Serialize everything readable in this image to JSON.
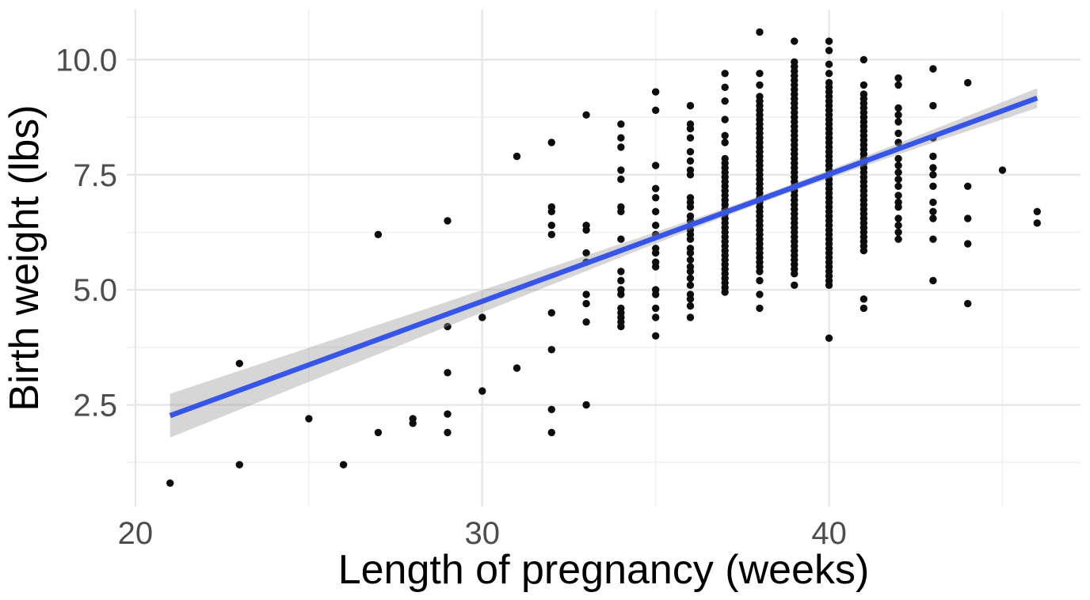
{
  "page": {
    "background": "#FFFFFF"
  },
  "chart_data": {
    "type": "scatter",
    "title": "",
    "xlabel": "Length of pregnancy (weeks)",
    "ylabel": "Birth weight (lbs)",
    "xlim": [
      19.75,
      47.25
    ],
    "ylim": [
      0.29,
      11.09
    ],
    "x_major_ticks": [
      {
        "value": 20,
        "label": "20"
      },
      {
        "value": 30,
        "label": "30"
      },
      {
        "value": 40,
        "label": "40"
      }
    ],
    "x_minor_ticks": [
      25,
      35,
      45
    ],
    "y_major_ticks": [
      {
        "value": 2.5,
        "label": "2.5"
      },
      {
        "value": 5.0,
        "label": "5.0"
      },
      {
        "value": 7.5,
        "label": "7.5"
      },
      {
        "value": 10.0,
        "label": "10.0"
      }
    ],
    "y_minor_ticks": [
      1.25,
      3.75,
      6.25,
      8.75
    ],
    "grid": "major+minor horizontal and vertical, theme_minimal (no axis lines, no tick marks)",
    "legend": "none",
    "points_by_week": [
      {
        "week": 21,
        "weights": [
          0.8
        ]
      },
      {
        "week": 23,
        "weights": [
          3.4,
          1.2
        ]
      },
      {
        "week": 25,
        "weights": [
          2.2
        ]
      },
      {
        "week": 26,
        "weights": [
          1.2
        ]
      },
      {
        "week": 27,
        "weights": [
          6.2,
          1.9
        ]
      },
      {
        "week": 28,
        "weights": [
          2.2,
          2.1
        ]
      },
      {
        "week": 29,
        "weights": [
          6.5,
          4.2,
          3.2,
          2.3,
          1.9
        ]
      },
      {
        "week": 30,
        "weights": [
          4.4,
          2.8
        ]
      },
      {
        "week": 31,
        "weights": [
          7.9,
          3.3
        ]
      },
      {
        "week": 32,
        "weights": [
          8.2,
          6.8,
          6.7,
          6.4,
          6.2,
          4.5,
          3.7,
          2.4,
          1.9
        ]
      },
      {
        "week": 33,
        "weights": [
          8.8,
          6.4,
          6.3,
          5.8,
          5.6,
          4.9,
          4.7,
          4.3,
          2.5
        ]
      },
      {
        "week": 34,
        "weights": [
          8.6,
          8.3,
          8.1,
          7.6,
          7.4,
          6.8,
          6.7,
          6.1,
          5.4,
          5.2,
          5.0,
          4.9,
          4.6,
          4.5,
          4.4,
          4.3,
          4.2
        ]
      },
      {
        "week": 35,
        "weights": [
          9.3,
          8.9,
          7.7,
          7.2,
          7.0,
          6.7,
          6.4,
          6.2,
          5.9,
          5.8,
          5.6,
          5.5,
          5.0,
          4.9,
          4.6,
          4.4,
          4.0
        ]
      },
      {
        "week": 36,
        "weights": [
          9.0,
          8.6,
          8.5,
          8.3,
          8.0,
          7.8,
          7.6,
          7.5,
          7.0,
          6.9,
          6.8,
          6.6,
          6.5,
          6.3,
          6.2,
          6.1,
          5.9,
          5.8,
          5.65,
          5.5,
          5.4,
          5.25,
          5.1,
          4.9,
          4.8,
          4.65,
          4.4
        ]
      },
      {
        "week": 37,
        "weights": [
          9.7,
          9.4,
          9.1,
          8.7,
          8.35,
          8.2,
          7.85,
          7.75,
          7.65,
          7.55,
          7.45,
          7.35,
          7.25,
          7.15,
          7.05,
          6.95,
          6.85,
          6.75,
          6.65,
          6.55,
          6.45,
          6.35,
          6.25,
          6.15,
          6.05,
          5.95,
          5.85,
          5.75,
          5.65,
          5.55,
          5.45,
          5.35,
          5.25,
          5.15,
          5.05,
          4.95
        ]
      },
      {
        "week": 38,
        "weights": [
          10.6,
          9.7,
          9.45,
          9.2,
          9.1,
          9.0,
          8.9,
          8.8,
          8.7,
          8.6,
          8.5,
          8.4,
          8.3,
          8.2,
          8.1,
          8.0,
          7.9,
          7.8,
          7.7,
          7.6,
          7.5,
          7.4,
          7.3,
          7.2,
          7.1,
          7.0,
          6.9,
          6.8,
          6.7,
          6.6,
          6.5,
          6.4,
          6.3,
          6.2,
          6.1,
          6.0,
          5.9,
          5.8,
          5.7,
          5.6,
          5.5,
          5.4,
          5.2,
          4.9,
          4.6
        ]
      },
      {
        "week": 39,
        "weights": [
          10.4,
          9.95,
          9.85,
          9.75,
          9.65,
          9.55,
          9.45,
          9.35,
          9.25,
          9.15,
          9.05,
          8.95,
          8.85,
          8.75,
          8.65,
          8.55,
          8.45,
          8.35,
          8.25,
          8.15,
          8.05,
          7.95,
          7.85,
          7.75,
          7.65,
          7.55,
          7.45,
          7.35,
          7.25,
          7.15,
          7.05,
          6.95,
          6.85,
          6.75,
          6.65,
          6.55,
          6.45,
          6.35,
          6.25,
          6.15,
          6.05,
          5.95,
          5.85,
          5.75,
          5.65,
          5.55,
          5.45,
          5.35,
          5.1
        ]
      },
      {
        "week": 40,
        "weights": [
          10.4,
          10.2,
          9.9,
          9.7,
          9.5,
          9.4,
          9.3,
          9.2,
          9.1,
          9.0,
          8.9,
          8.8,
          8.7,
          8.6,
          8.5,
          8.4,
          8.3,
          8.2,
          8.1,
          8.0,
          7.9,
          7.8,
          7.7,
          7.6,
          7.5,
          7.4,
          7.3,
          7.2,
          7.1,
          7.0,
          6.9,
          6.8,
          6.7,
          6.6,
          6.5,
          6.4,
          6.3,
          6.2,
          6.1,
          6.0,
          5.9,
          5.8,
          5.7,
          5.6,
          5.5,
          5.4,
          5.3,
          5.2,
          5.1,
          3.95
        ]
      },
      {
        "week": 41,
        "weights": [
          10.0,
          9.45,
          9.25,
          9.15,
          9.05,
          8.95,
          8.85,
          8.75,
          8.65,
          8.55,
          8.45,
          8.35,
          8.25,
          8.15,
          8.05,
          7.95,
          7.85,
          7.75,
          7.65,
          7.55,
          7.45,
          7.35,
          7.25,
          7.15,
          7.05,
          6.95,
          6.85,
          6.75,
          6.65,
          6.55,
          6.45,
          6.35,
          6.25,
          6.15,
          6.05,
          5.95,
          5.85,
          4.8,
          4.6
        ]
      },
      {
        "week": 42,
        "weights": [
          9.6,
          9.45,
          8.95,
          8.8,
          8.65,
          8.4,
          8.2,
          7.85,
          7.7,
          7.55,
          7.4,
          7.25,
          7.05,
          6.9,
          6.8,
          6.55,
          6.4,
          6.25,
          6.1
        ]
      },
      {
        "week": 43,
        "weights": [
          9.8,
          9.0,
          8.3,
          7.9,
          7.65,
          7.5,
          7.25,
          6.9,
          6.7,
          6.55,
          6.1,
          5.2
        ]
      },
      {
        "week": 44,
        "weights": [
          9.5,
          7.25,
          6.55,
          6.0,
          4.7
        ]
      },
      {
        "week": 45,
        "weights": [
          7.6
        ]
      },
      {
        "week": 46,
        "weights": [
          6.7,
          6.45
        ]
      }
    ],
    "regression": {
      "model": "linear",
      "slope": 0.276,
      "intercept": -3.53,
      "x_start": 21,
      "x_end": 46,
      "y_start": 2.27,
      "y_end": 9.17,
      "ci_band": {
        "halfwidth_min": 0.08,
        "center_week": 38.6,
        "spread_weeks": 3.0,
        "halfwidth_at_start": 0.48,
        "halfwidth_at_end": 0.21
      }
    },
    "colors": {
      "point": "#0D0D0D",
      "smooth_line": "#3755E6",
      "ci_band": "rgba(153,153,153,0.40)",
      "grid_major": "#E7E7E7",
      "grid_minor": "#F1F1F1",
      "tick_text": "#4D4D4D",
      "title_text": "#000000",
      "background": "#FFFFFF"
    }
  }
}
